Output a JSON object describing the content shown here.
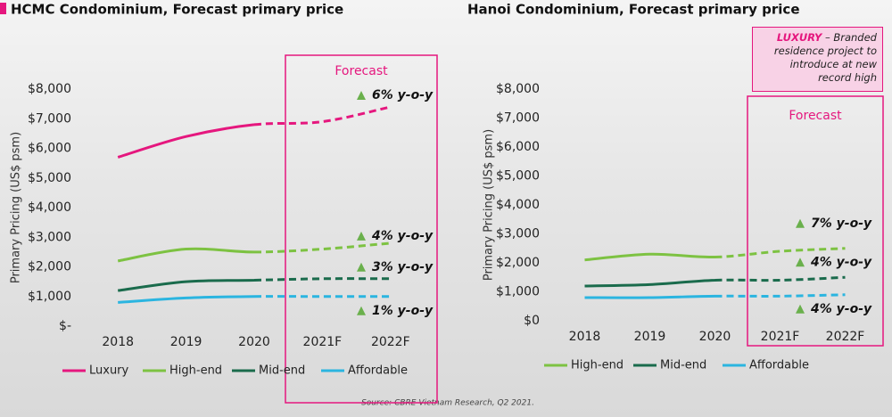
{
  "source": "Source: CBRE Vietnam Research, Q2 2021.",
  "chart_data": [
    {
      "type": "line",
      "title": "HCMC Condominium, Forecast primary price",
      "y_label": "Primary Pricing (US$ psm)",
      "forecast_label": "Forecast",
      "categories": [
        "2018",
        "2019",
        "2020",
        "2021F",
        "2022F"
      ],
      "ylim": [
        0,
        8000
      ],
      "yticks": [
        {
          "value": 0,
          "label": "$-"
        },
        {
          "value": 1000,
          "label": "$1,000"
        },
        {
          "value": 2000,
          "label": "$2,000"
        },
        {
          "value": 3000,
          "label": "$3,000"
        },
        {
          "value": 4000,
          "label": "$4,000"
        },
        {
          "value": 5000,
          "label": "$5,000"
        },
        {
          "value": 6000,
          "label": "$6,000"
        },
        {
          "value": 7000,
          "label": "$7,000"
        },
        {
          "value": 8000,
          "label": "$8,000"
        }
      ],
      "series": [
        {
          "name": "Luxury",
          "color": "#e5177e",
          "values": [
            5700,
            6400,
            6800,
            6900,
            7400
          ],
          "growth_label": "6% y-o-y"
        },
        {
          "name": "High-end",
          "color": "#7dc242",
          "values": [
            2200,
            2600,
            2500,
            2600,
            2800
          ],
          "growth_label": "4% y-o-y"
        },
        {
          "name": "Mid-end",
          "color": "#1a6b4c",
          "values": [
            1200,
            1500,
            1550,
            1600,
            1600
          ],
          "growth_label": "3% y-o-y"
        },
        {
          "name": "Affordable",
          "color": "#2bb5e0",
          "values": [
            800,
            950,
            1000,
            1000,
            1000
          ],
          "growth_label": "1% y-o-y"
        }
      ]
    },
    {
      "type": "line",
      "title": "Hanoi Condominium, Forecast primary price",
      "y_label": "Primary Pricing (US$ psm)",
      "forecast_label": "Forecast",
      "callout": {
        "highlight": "LUXURY",
        "text": "– Branded residence project to introduce at new record high"
      },
      "categories": [
        "2018",
        "2019",
        "2020",
        "2021F",
        "2022F"
      ],
      "ylim": [
        0,
        8000
      ],
      "yticks": [
        {
          "value": 0,
          "label": "$0"
        },
        {
          "value": 1000,
          "label": "$1,000"
        },
        {
          "value": 2000,
          "label": "$2,000"
        },
        {
          "value": 3000,
          "label": "$3,000"
        },
        {
          "value": 4000,
          "label": "$4,000"
        },
        {
          "value": 5000,
          "label": "$5,000"
        },
        {
          "value": 6000,
          "label": "$6,000"
        },
        {
          "value": 7000,
          "label": "$7,000"
        },
        {
          "value": 8000,
          "label": "$8,000"
        }
      ],
      "series": [
        {
          "name": "High-end",
          "color": "#7dc242",
          "values": [
            2100,
            2300,
            2200,
            2400,
            2500
          ],
          "growth_label": "7% y-o-y"
        },
        {
          "name": "Mid-end",
          "color": "#1a6b4c",
          "values": [
            1200,
            1250,
            1400,
            1400,
            1500
          ],
          "growth_label": "4% y-o-y"
        },
        {
          "name": "Affordable",
          "color": "#2bb5e0",
          "values": [
            800,
            800,
            850,
            850,
            900
          ],
          "growth_label": "4% y-o-y"
        }
      ]
    }
  ]
}
